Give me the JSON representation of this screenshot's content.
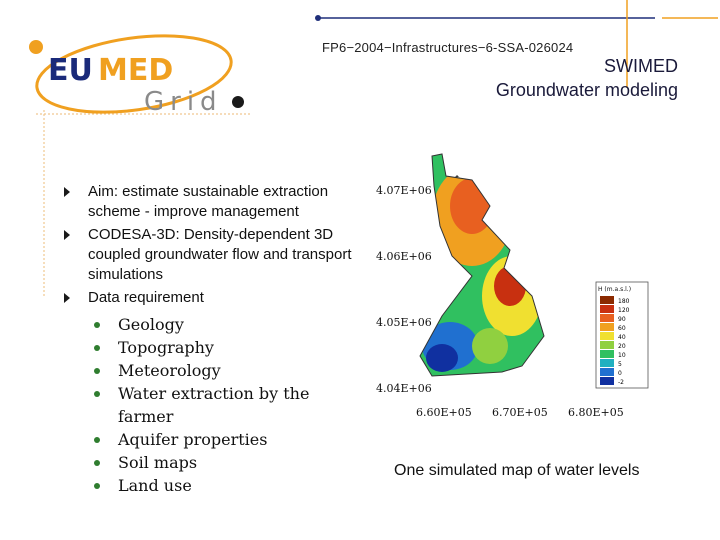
{
  "header": {
    "logo_text": "EUMED Grid",
    "project_code": "FP6−2004−Infrastructures−6-SSA-026024",
    "title_line1": "SWIMED",
    "title_line2": "Groundwater modeling"
  },
  "bullets": [
    {
      "text": "Aim: estimate sustainable extraction scheme - improve management"
    },
    {
      "text": "CODESA-3D: Density-dependent 3D coupled  groundwater flow and transport simulations"
    },
    {
      "text": "Data requirement"
    }
  ],
  "data_requirements": [
    "Geology",
    "Topography",
    "Meteorology",
    "Water extraction by the farmer",
    "Aquifer properties",
    "Soil maps",
    "Land use"
  ],
  "figure": {
    "y_ticks": [
      "4.07E+06",
      "4.06E+06",
      "4.05E+06",
      "4.04E+06"
    ],
    "x_ticks": [
      "6.60E+05",
      "6.70E+05",
      "6.80E+05"
    ],
    "legend_title": "H (m.a.s.l.)",
    "legend_values": [
      "180",
      "120",
      "90",
      "60",
      "40",
      "20",
      "10",
      "5",
      "0",
      "-2"
    ],
    "colors": [
      "#8b2a00",
      "#c83010",
      "#e86020",
      "#f0a020",
      "#f0e030",
      "#90d040",
      "#30c060",
      "#20b0c0",
      "#2070d0",
      "#1030a0"
    ],
    "caption": "One simulated map of water levels"
  },
  "theme": {
    "accent_orange": "#f0a020",
    "accent_navy": "#1a2a6a"
  }
}
